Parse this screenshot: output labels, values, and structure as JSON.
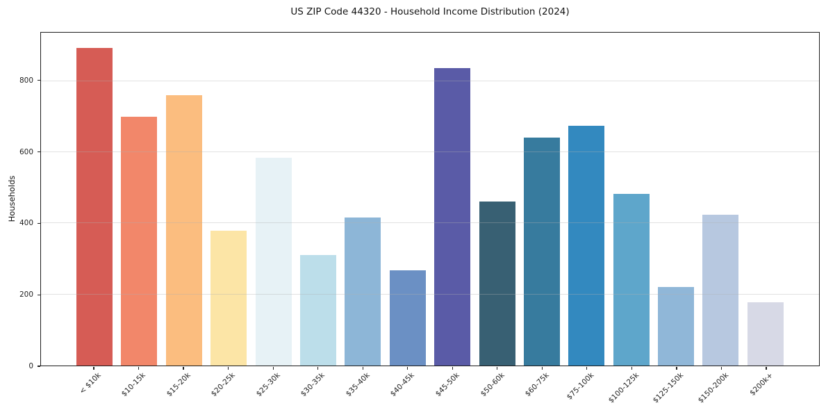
{
  "chart_data": {
    "type": "bar",
    "title": "US ZIP Code 44320 - Household Income Distribution (2024)",
    "xlabel": "",
    "ylabel": "Households",
    "categories": [
      "< $10k",
      "$10-15k",
      "$15-20k",
      "$20-25k",
      "$25-30k",
      "$30-35k",
      "$35-40k",
      "$40-45k",
      "$45-50k",
      "$50-60k",
      "$60-75k",
      "$75-100k",
      "$100-125k",
      "$125-150k",
      "$150-200k",
      "$200k+"
    ],
    "values": [
      894,
      700,
      761,
      380,
      585,
      311,
      417,
      268,
      836,
      462,
      640,
      674,
      483,
      220,
      424,
      177
    ],
    "bar_colors": [
      "#d65c55",
      "#f2876a",
      "#fbbd7f",
      "#fce5a6",
      "#e7f2f6",
      "#bcdeea",
      "#8db6d7",
      "#6b90c4",
      "#5a5ba7",
      "#386073",
      "#377b9e",
      "#3389bf",
      "#5ea6cb",
      "#90b7d8",
      "#b7c8e0",
      "#d7d9e6"
    ],
    "y_ticks": [
      0,
      200,
      400,
      600,
      800
    ],
    "ylim": [
      0,
      936
    ],
    "grid": "horizontal",
    "grid_above_bars": true,
    "legend": "none",
    "x_tick_rotation": 45
  }
}
